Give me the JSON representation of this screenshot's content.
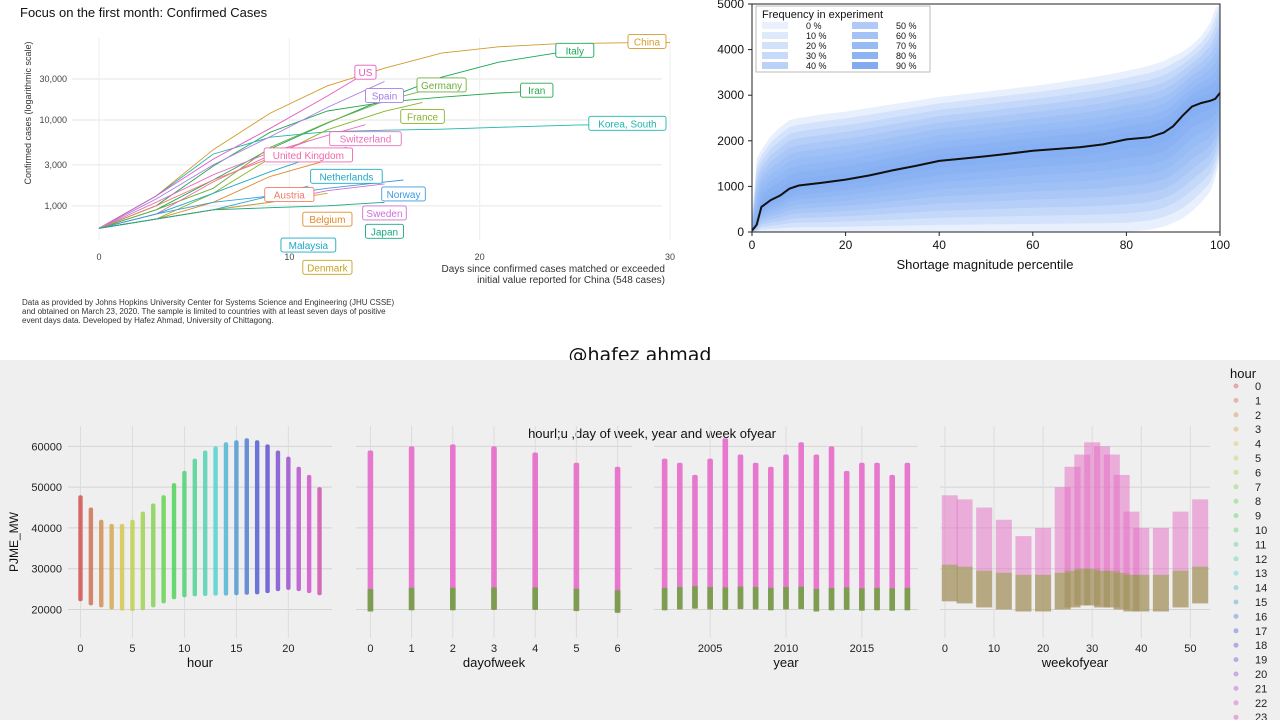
{
  "credit": "@hafez ahmad",
  "charts": {
    "covid": {
      "title": "Focus on the first month: Confirmed Cases",
      "ylabel": "Confirmed cases (logarithmic scale)",
      "xlabel_line1": "Days since confirmed cases matched or exceeded",
      "xlabel_line2": "initial value reported for China (548 cases)",
      "footnote_line1": "Data as provided by Johns Hopkins University Center for Systems Science and Engineering (JHU CSSE)",
      "footnote_line2": "and obtained on March 23, 2020. The sample is limited to countries with at least seven days of positive",
      "footnote_line3": "event days data. Developed by Hafez Ahmad, University of Chittagong."
    },
    "shortage": {
      "xlabel": "Shortage magnitude percentile",
      "legend_title": "Frequency in experiment"
    },
    "pjme": {
      "title": "hourl;u ,day of week, year and week ofyear",
      "ylabel": "PJME_MW",
      "legend_title": "hour"
    }
  },
  "chart_data": [
    {
      "type": "line",
      "title": "Focus on the first month: Confirmed Cases",
      "xlabel": "Days since confirmed cases matched or exceeded initial value reported for China (548 cases)",
      "ylabel": "Confirmed cases (logarithmic scale)",
      "yscale": "log",
      "xlim": [
        0,
        31
      ],
      "ylim": [
        400,
        90000
      ],
      "x_ticks": [
        0,
        10,
        20,
        30
      ],
      "y_ticks": [
        1000,
        3000,
        10000,
        30000
      ],
      "y_tick_labels": [
        "1,000",
        "3,000",
        "10,000",
        "30,000"
      ],
      "grid": true,
      "series": [
        {
          "name": "China",
          "color": "#d39a2f",
          "x": [
            0,
            3,
            6,
            9,
            12,
            15,
            18,
            21,
            24,
            27,
            30
          ],
          "y": [
            548,
            1300,
            4500,
            12000,
            25000,
            40000,
            60000,
            71000,
            77000,
            79000,
            80000
          ]
        },
        {
          "name": "Italy",
          "color": "#18a65a",
          "x": [
            0,
            3,
            6,
            9,
            12,
            15,
            18,
            21,
            24,
            25
          ],
          "y": [
            548,
            900,
            2000,
            4600,
            9200,
            17500,
            31500,
            47000,
            60000,
            63000
          ]
        },
        {
          "name": "Iran",
          "color": "#26a84d",
          "x": [
            0,
            3,
            6,
            9,
            12,
            15,
            18,
            21,
            23
          ],
          "y": [
            548,
            1000,
            2900,
            7200,
            12700,
            16100,
            18400,
            20600,
            21600
          ]
        },
        {
          "name": "Korea, South",
          "color": "#1eb7b0",
          "x": [
            0,
            3,
            6,
            9,
            12,
            15,
            18,
            21,
            25,
            28
          ],
          "y": [
            548,
            1300,
            4000,
            6300,
            7300,
            7600,
            7800,
            8200,
            8700,
            8900
          ]
        },
        {
          "name": "US",
          "color": "#e15abf",
          "x": [
            0,
            3,
            6,
            9,
            12,
            14
          ],
          "y": [
            548,
            1300,
            3500,
            8000,
            19000,
            35000
          ]
        },
        {
          "name": "Spain",
          "color": "#a77ee8",
          "x": [
            0,
            3,
            6,
            9,
            12,
            15
          ],
          "y": [
            548,
            1200,
            3000,
            6400,
            14000,
            28000
          ]
        },
        {
          "name": "Germany",
          "color": "#6fae3c",
          "x": [
            0,
            3,
            6,
            9,
            12,
            15,
            18
          ],
          "y": [
            548,
            900,
            1600,
            4800,
            9300,
            16600,
            24900
          ]
        },
        {
          "name": "France",
          "color": "#86b52a",
          "x": [
            0,
            3,
            6,
            9,
            12,
            15,
            17
          ],
          "y": [
            548,
            700,
            1400,
            3600,
            7700,
            12600,
            16000
          ]
        },
        {
          "name": "Switzerland",
          "color": "#e86fbf",
          "x": [
            0,
            3,
            6,
            9,
            12,
            14
          ],
          "y": [
            548,
            1100,
            2300,
            4200,
            6600,
            8800
          ]
        },
        {
          "name": "United Kingdom",
          "color": "#f266aa",
          "x": [
            0,
            3,
            6,
            9,
            11
          ],
          "y": [
            548,
            800,
            1900,
            3900,
            5700
          ]
        },
        {
          "name": "Netherlands",
          "color": "#1ea9c4",
          "x": [
            0,
            3,
            6,
            9,
            12,
            13
          ],
          "y": [
            548,
            800,
            1400,
            2500,
            4200,
            4800
          ]
        },
        {
          "name": "Austria",
          "color": "#f07c6a",
          "x": [
            0,
            3,
            6,
            9,
            10
          ],
          "y": [
            548,
            1000,
            2000,
            3600,
            4400
          ]
        },
        {
          "name": "Belgium",
          "color": "#e08a2c",
          "x": [
            0,
            3,
            6,
            9,
            12
          ],
          "y": [
            548,
            700,
            1100,
            2200,
            3400
          ]
        },
        {
          "name": "Norway",
          "color": "#3d9be0",
          "x": [
            0,
            3,
            6,
            9,
            12,
            16
          ],
          "y": [
            548,
            800,
            1100,
            1300,
            1600,
            2000
          ]
        },
        {
          "name": "Sweden",
          "color": "#cf6fd9",
          "x": [
            0,
            3,
            6,
            9,
            12,
            15
          ],
          "y": [
            548,
            700,
            900,
            1100,
            1500,
            1800
          ]
        },
        {
          "name": "Malaysia",
          "color": "#19a8c9",
          "x": [
            0,
            3,
            6,
            9,
            11
          ],
          "y": [
            548,
            700,
            900,
            1300,
            1700
          ]
        },
        {
          "name": "Denmark",
          "color": "#c4a321",
          "x": [
            0,
            3,
            6,
            9,
            12
          ],
          "y": [
            548,
            700,
            900,
            1100,
            1400
          ]
        },
        {
          "name": "Japan",
          "color": "#19a883",
          "x": [
            0,
            3,
            6,
            9,
            12,
            15
          ],
          "y": [
            548,
            700,
            900,
            950,
            1000,
            1100
          ]
        }
      ]
    },
    {
      "type": "area",
      "xlabel": "Shortage magnitude percentile",
      "xlim": [
        0,
        100
      ],
      "ylim": [
        0,
        5000
      ],
      "x_ticks": [
        0,
        20,
        40,
        60,
        80,
        100
      ],
      "y_ticks": [
        0,
        1000,
        2000,
        3000,
        4000,
        5000
      ],
      "legend_title": "Frequency in experiment",
      "legend_position": "top-left",
      "legend_entries": [
        "0 %",
        "10 %",
        "20 %",
        "30 %",
        "40 %",
        "50 %",
        "60 %",
        "70 %",
        "80 %",
        "90 %"
      ],
      "x": [
        0,
        1,
        2,
        4,
        6,
        8,
        10,
        15,
        20,
        25,
        30,
        35,
        40,
        45,
        50,
        55,
        60,
        65,
        70,
        75,
        80,
        85,
        88,
        90,
        92,
        94,
        96,
        98,
        99,
        100
      ],
      "median_line": [
        30,
        160,
        550,
        700,
        800,
        950,
        1020,
        1080,
        1150,
        1240,
        1350,
        1450,
        1560,
        1610,
        1660,
        1720,
        1780,
        1820,
        1860,
        1920,
        2030,
        2080,
        2180,
        2320,
        2550,
        2750,
        2830,
        2880,
        2920,
        3050
      ],
      "band_upper": [
        300,
        1600,
        1800,
        2100,
        2300,
        2450,
        2500,
        2580,
        2640,
        2720,
        2800,
        2880,
        2960,
        3020,
        3080,
        3140,
        3200,
        3270,
        3350,
        3430,
        3530,
        3650,
        3750,
        3850,
        3950,
        4100,
        4300,
        4600,
        4900,
        5300
      ],
      "band_lower": [
        0,
        0,
        0,
        0,
        0,
        0,
        0,
        0,
        0,
        0,
        0,
        0,
        0,
        0,
        0,
        0,
        0,
        0,
        0,
        0,
        0,
        50,
        120,
        200,
        300,
        450,
        650,
        900,
        1200,
        1600
      ]
    },
    {
      "type": "scatter",
      "title": "hourl;u ,day of week, year and week ofyear",
      "ylabel": "PJME_MW",
      "y_ticks": [
        20000,
        30000,
        40000,
        50000,
        60000
      ],
      "color_legend_title": "hour",
      "color_legend_entries": [
        "0",
        "1",
        "2",
        "3",
        "4",
        "5",
        "6",
        "7",
        "8",
        "9",
        "10",
        "11",
        "12",
        "13",
        "14",
        "15",
        "16",
        "17",
        "18",
        "19",
        "20",
        "21",
        "22",
        "23"
      ],
      "facets": [
        {
          "xlabel": "hour",
          "x_ticks": [
            0,
            5,
            10,
            15,
            20
          ],
          "x": [
            0,
            1,
            2,
            3,
            4,
            5,
            6,
            7,
            8,
            9,
            10,
            11,
            12,
            13,
            14,
            15,
            16,
            17,
            18,
            19,
            20,
            21,
            22,
            23
          ],
          "y_min": [
            22000,
            21000,
            20500,
            20000,
            19700,
            19600,
            19800,
            20500,
            21500,
            22500,
            23000,
            23200,
            23300,
            23400,
            23400,
            23500,
            23600,
            23700,
            24000,
            24500,
            24800,
            24500,
            24000,
            23500
          ],
          "y_max": [
            48000,
            45000,
            42000,
            41000,
            41000,
            42000,
            44000,
            46000,
            48000,
            51000,
            54000,
            57000,
            59000,
            60000,
            61000,
            61500,
            62000,
            61500,
            60500,
            59000,
            57500,
            55000,
            53000,
            50000
          ]
        },
        {
          "xlabel": "dayofweek",
          "x_ticks": [
            0,
            1,
            2,
            3,
            4,
            5,
            6
          ],
          "x": [
            0,
            1,
            2,
            3,
            4,
            5,
            6
          ],
          "y_min": [
            19500,
            19800,
            19800,
            19900,
            19900,
            19600,
            19200
          ],
          "y_max": [
            59000,
            60000,
            60500,
            60000,
            58500,
            56000,
            55000
          ]
        },
        {
          "xlabel": "year",
          "x_ticks": [
            2005,
            2010,
            2015
          ],
          "x": [
            2002,
            2003,
            2004,
            2005,
            2006,
            2007,
            2008,
            2009,
            2010,
            2011,
            2012,
            2013,
            2014,
            2015,
            2016,
            2017,
            2018
          ],
          "y_min": [
            19800,
            20000,
            20200,
            20000,
            19900,
            20100,
            20000,
            19800,
            20000,
            20100,
            19500,
            19800,
            19900,
            19700,
            19800,
            19700,
            19800
          ],
          "y_max": [
            57000,
            56000,
            53000,
            57000,
            62000,
            58000,
            56000,
            55000,
            58000,
            61000,
            58000,
            60000,
            54000,
            56000,
            56000,
            53000,
            56000
          ]
        },
        {
          "xlabel": "weekofyear",
          "x_ticks": [
            0,
            10,
            20,
            30,
            40,
            50
          ],
          "x": [
            1,
            4,
            8,
            12,
            16,
            20,
            24,
            26,
            28,
            30,
            32,
            34,
            36,
            38,
            40,
            44,
            48,
            52
          ],
          "y_min": [
            22000,
            21500,
            20500,
            20000,
            19500,
            19500,
            20000,
            20500,
            21000,
            21000,
            20500,
            20500,
            20000,
            19500,
            19500,
            19500,
            20500,
            21500
          ],
          "y_max": [
            48000,
            47000,
            45000,
            42000,
            38000,
            40000,
            50000,
            55000,
            58000,
            61000,
            60000,
            58000,
            53000,
            44000,
            40000,
            40000,
            44000,
            47000
          ]
        }
      ]
    }
  ]
}
